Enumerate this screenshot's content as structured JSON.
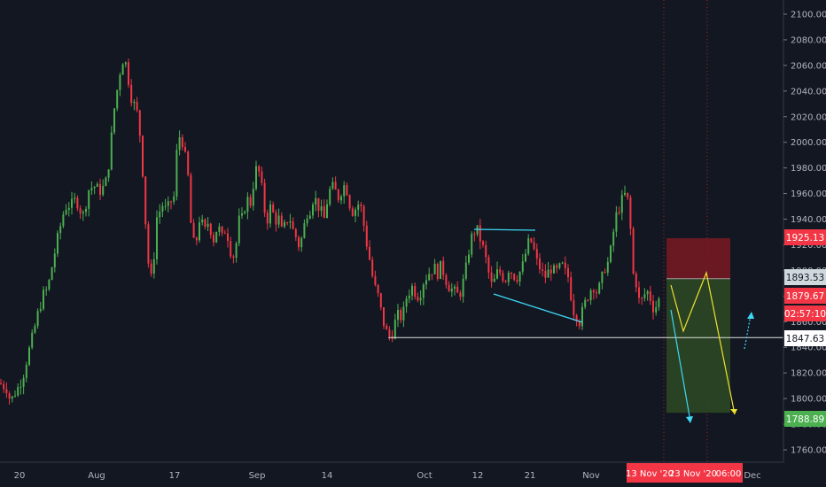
{
  "chart_data": {
    "type": "candlestick",
    "y_axis": {
      "range": [
        1755,
        2110
      ],
      "ticks": [
        "1760.00",
        "1780.00",
        "1800.00",
        "1820.00",
        "1840.00",
        "1860.00",
        "1880.00",
        "1900.00",
        "1920.00",
        "1940.00",
        "1960.00",
        "1980.00",
        "2000.00",
        "2020.00",
        "2040.00",
        "2060.00",
        "2080.00",
        "2100.00"
      ]
    },
    "x_axis": {
      "ticks": [
        "20",
        "Aug",
        "17",
        "Sep",
        "14",
        "Oct",
        "12",
        "21",
        "Nov",
        "Dec"
      ],
      "highlighted_labels": [
        "13 Nov '20",
        "23 Nov '20",
        "06:00"
      ]
    },
    "price_path": [
      [
        0,
        1812
      ],
      [
        4,
        1810
      ],
      [
        8,
        1808
      ],
      [
        12,
        1797
      ],
      [
        16,
        1804
      ],
      [
        20,
        1808
      ],
      [
        26,
        1818
      ],
      [
        30,
        1830
      ],
      [
        36,
        1846
      ],
      [
        42,
        1864
      ],
      [
        48,
        1880
      ],
      [
        54,
        1886
      ],
      [
        60,
        1908
      ],
      [
        66,
        1928
      ],
      [
        72,
        1946
      ],
      [
        76,
        1952
      ],
      [
        80,
        1950
      ],
      [
        86,
        1956
      ],
      [
        90,
        1948
      ],
      [
        94,
        1943
      ],
      [
        100,
        1963
      ],
      [
        106,
        1966
      ],
      [
        112,
        1962
      ],
      [
        116,
        1964
      ],
      [
        120,
        1970
      ],
      [
        124,
        1990
      ],
      [
        128,
        2022
      ],
      [
        132,
        2040
      ],
      [
        136,
        2058
      ],
      [
        140,
        2068
      ],
      [
        144,
        2053
      ],
      [
        148,
        2036
      ],
      [
        152,
        2028
      ],
      [
        156,
        2020
      ],
      [
        160,
        1990
      ],
      [
        164,
        1940
      ],
      [
        168,
        1900
      ],
      [
        172,
        1890
      ],
      [
        176,
        1940
      ],
      [
        180,
        1946
      ],
      [
        184,
        1952
      ],
      [
        188,
        1945
      ],
      [
        192,
        1954
      ],
      [
        196,
        1955
      ],
      [
        200,
        1998
      ],
      [
        204,
        2008
      ],
      [
        208,
        1992
      ],
      [
        212,
        1975
      ],
      [
        216,
        1930
      ],
      [
        220,
        1916
      ],
      [
        226,
        1945
      ],
      [
        230,
        1928
      ],
      [
        236,
        1940
      ],
      [
        240,
        1922
      ],
      [
        246,
        1936
      ],
      [
        250,
        1924
      ],
      [
        254,
        1932
      ],
      [
        258,
        1925
      ],
      [
        262,
        1908
      ],
      [
        266,
        1918
      ],
      [
        270,
        1940
      ],
      [
        274,
        1940
      ],
      [
        278,
        1958
      ],
      [
        282,
        1950
      ],
      [
        286,
        1968
      ],
      [
        290,
        1982
      ],
      [
        294,
        1972
      ],
      [
        298,
        1948
      ],
      [
        302,
        1940
      ],
      [
        306,
        1952
      ],
      [
        310,
        1938
      ],
      [
        314,
        1942
      ],
      [
        318,
        1930
      ],
      [
        322,
        1935
      ],
      [
        326,
        1944
      ],
      [
        330,
        1932
      ],
      [
        334,
        1926
      ],
      [
        338,
        1918
      ],
      [
        342,
        1930
      ],
      [
        346,
        1945
      ],
      [
        350,
        1948
      ],
      [
        354,
        1958
      ],
      [
        358,
        1952
      ],
      [
        362,
        1946
      ],
      [
        366,
        1940
      ],
      [
        370,
        1958
      ],
      [
        374,
        1966
      ],
      [
        378,
        1962
      ],
      [
        382,
        1957
      ],
      [
        386,
        1964
      ],
      [
        390,
        1968
      ],
      [
        394,
        1953
      ],
      [
        398,
        1946
      ],
      [
        402,
        1949
      ],
      [
        406,
        1954
      ],
      [
        410,
        1938
      ],
      [
        414,
        1920
      ],
      [
        418,
        1905
      ],
      [
        422,
        1888
      ],
      [
        426,
        1882
      ],
      [
        430,
        1868
      ],
      [
        434,
        1856
      ],
      [
        438,
        1848
      ],
      [
        442,
        1850
      ],
      [
        446,
        1860
      ],
      [
        450,
        1866
      ],
      [
        454,
        1862
      ],
      [
        458,
        1878
      ],
      [
        462,
        1884
      ],
      [
        466,
        1888
      ],
      [
        470,
        1880
      ],
      [
        474,
        1882
      ],
      [
        478,
        1892
      ],
      [
        482,
        1896
      ],
      [
        486,
        1900
      ],
      [
        490,
        1902
      ],
      [
        494,
        1898
      ],
      [
        498,
        1904
      ],
      [
        502,
        1895
      ],
      [
        506,
        1888
      ],
      [
        510,
        1885
      ],
      [
        514,
        1882
      ],
      [
        518,
        1880
      ],
      [
        522,
        1889
      ],
      [
        526,
        1902
      ],
      [
        530,
        1920
      ],
      [
        534,
        1930
      ],
      [
        538,
        1932
      ],
      [
        542,
        1924
      ],
      [
        546,
        1915
      ],
      [
        550,
        1903
      ],
      [
        554,
        1888
      ],
      [
        558,
        1892
      ],
      [
        562,
        1900
      ],
      [
        566,
        1897
      ],
      [
        570,
        1892
      ],
      [
        574,
        1902
      ],
      [
        578,
        1898
      ],
      [
        582,
        1894
      ],
      [
        586,
        1898
      ],
      [
        590,
        1904
      ],
      [
        594,
        1916
      ],
      [
        598,
        1925
      ],
      [
        602,
        1917
      ],
      [
        606,
        1906
      ],
      [
        610,
        1901
      ],
      [
        614,
        1894
      ],
      [
        618,
        1898
      ],
      [
        622,
        1902
      ],
      [
        626,
        1898
      ],
      [
        630,
        1900
      ],
      [
        634,
        1904
      ],
      [
        638,
        1898
      ],
      [
        642,
        1894
      ],
      [
        646,
        1870
      ],
      [
        650,
        1866
      ],
      [
        654,
        1860
      ],
      [
        658,
        1870
      ],
      [
        662,
        1878
      ],
      [
        666,
        1885
      ],
      [
        670,
        1888
      ],
      [
        674,
        1882
      ],
      [
        678,
        1890
      ],
      [
        682,
        1902
      ],
      [
        686,
        1906
      ],
      [
        690,
        1918
      ],
      [
        694,
        1940
      ],
      [
        698,
        1948
      ],
      [
        702,
        1955
      ],
      [
        706,
        1960
      ],
      [
        710,
        1950
      ],
      [
        714,
        1898
      ],
      [
        718,
        1890
      ],
      [
        722,
        1872
      ],
      [
        726,
        1880
      ],
      [
        730,
        1884
      ],
      [
        734,
        1878
      ],
      [
        738,
        1869
      ],
      [
        742,
        1875
      ],
      [
        746,
        1880
      ]
    ],
    "horizontal_levels": [
      {
        "value": 1847.63,
        "label": "1847.63"
      }
    ],
    "trend_lines": [
      {
        "points": [
          [
            "Sep 29",
            1933
          ],
          [
            "Oct 20",
            1932
          ]
        ]
      },
      {
        "points": [
          [
            "Oct 14",
            1886
          ],
          [
            "Nov 2",
            1862
          ]
        ]
      }
    ],
    "position_box": {
      "stop": 1925.13,
      "entry": 1893.53,
      "target": 1788.89
    },
    "price_tags": [
      {
        "label": "1925.13",
        "value": 1925.13,
        "bg": "#f23645",
        "fg": "#ffffff"
      },
      {
        "label": "1893.53",
        "value": 1893.53,
        "bg": "#cfd8dc",
        "fg": "#131722"
      },
      {
        "label": "1879.67",
        "value": 1879.67,
        "bg": "#f23645",
        "fg": "#ffffff"
      },
      {
        "label": "02:57:10",
        "value": 1868.0,
        "bg": "#f23645",
        "fg": "#ffffff"
      },
      {
        "label": "1847.63",
        "value": 1847.63,
        "bg": "#ffffff",
        "fg": "#131722"
      },
      {
        "label": "1788.89",
        "value": 1788.89,
        "bg": "#4caf50",
        "fg": "#ffffff"
      }
    ],
    "colors": {
      "background": "#131722",
      "up": "#26a69a",
      "up_candle": "#4caf50",
      "down_candle": "#f23645",
      "axis_text": "#b2b5be",
      "trend_line": "#3dd9f5",
      "projection": "#f0e130",
      "stop_zone": "#7a1a22",
      "target_zone": "#2e4a23"
    }
  }
}
